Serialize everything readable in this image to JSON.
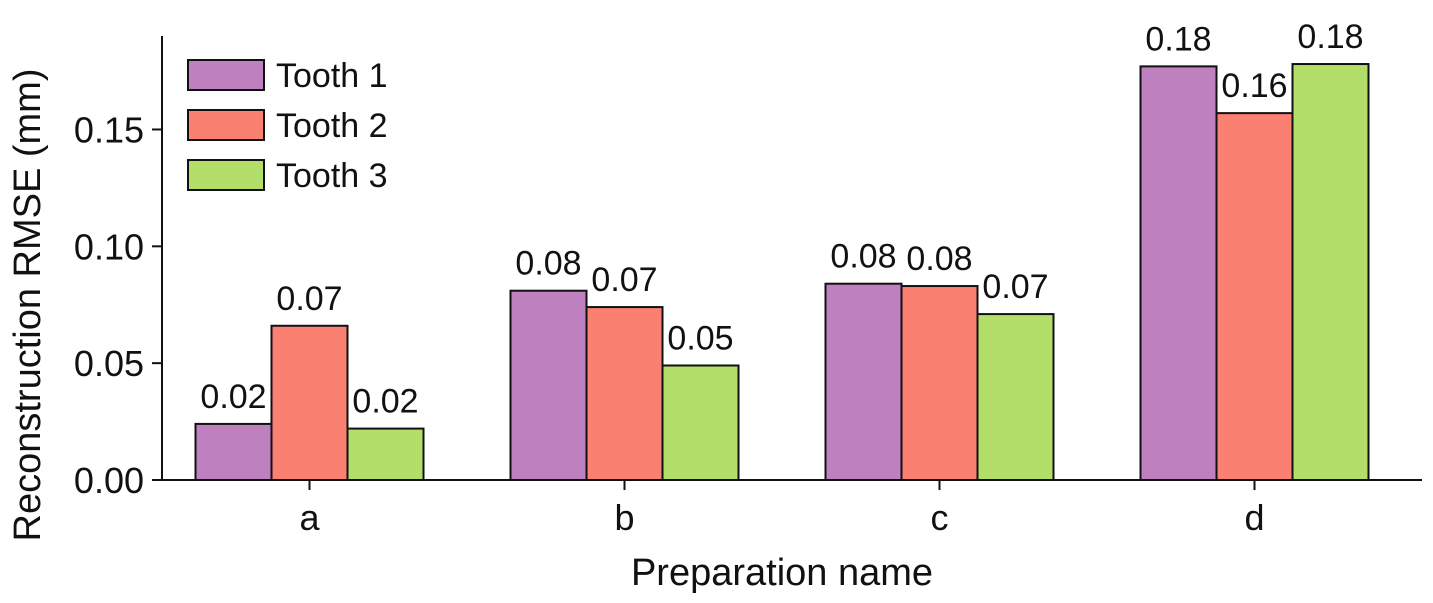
{
  "chart_data": {
    "type": "bar",
    "categories": [
      "a",
      "b",
      "c",
      "d"
    ],
    "series": [
      {
        "name": "Tooth 1",
        "values": [
          0.024,
          0.081,
          0.084,
          0.177
        ],
        "labels": [
          "0.02",
          "0.08",
          "0.08",
          "0.18"
        ],
        "color": "#bf80bf"
      },
      {
        "name": "Tooth 2",
        "values": [
          0.066,
          0.074,
          0.083,
          0.157
        ],
        "labels": [
          "0.07",
          "0.07",
          "0.08",
          "0.16"
        ],
        "color": "#fa8072"
      },
      {
        "name": "Tooth 3",
        "values": [
          0.022,
          0.049,
          0.071,
          0.178
        ],
        "labels": [
          "0.02",
          "0.05",
          "0.07",
          "0.18"
        ],
        "color": "#b3de69"
      }
    ],
    "xlabel": "Preparation name",
    "ylabel": "Reconstruction RMSE (mm)",
    "ylim": [
      0,
      0.19
    ],
    "yticks": [
      "0.00",
      "0.05",
      "0.10",
      "0.15"
    ],
    "grid": false,
    "legend_position": "top-left"
  }
}
